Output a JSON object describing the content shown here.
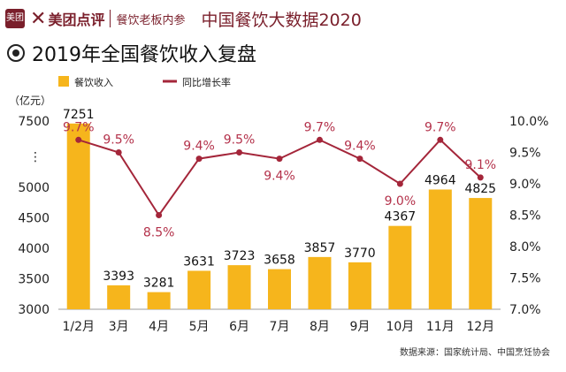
{
  "header": {
    "logo_box": "美团",
    "brand": "美团点评",
    "sub": "餐饮老板内参",
    "report": "中国餐饮大数据2020"
  },
  "title": "2019年全国餐饮收入复盘",
  "source": "数据来源：国家统计局、中国烹饪协会",
  "colors": {
    "bar": "#f6b51c",
    "line": "#a4263a",
    "growth_label": "#b4324b",
    "brand": "#7a1f2b"
  },
  "chart_data": {
    "type": "bar",
    "categories": [
      "1/2月",
      "3月",
      "4月",
      "5月",
      "6月",
      "7月",
      "8月",
      "9月",
      "10月",
      "11月",
      "12月"
    ],
    "series": [
      {
        "name": "餐饮收入",
        "type": "bar",
        "axis": "left",
        "values": [
          7251,
          3393,
          3281,
          3631,
          3723,
          3658,
          3857,
          3770,
          4367,
          4964,
          4825
        ]
      },
      {
        "name": "同比增长率",
        "type": "line",
        "axis": "right",
        "values": [
          9.7,
          9.5,
          8.5,
          9.4,
          9.5,
          9.4,
          9.7,
          9.4,
          9.0,
          9.7,
          9.1
        ],
        "labels": [
          "9.7%",
          "9.5%",
          "8.5%",
          "9.4%",
          "9.5%",
          "9.4%",
          "9.7%",
          "9.4%",
          "9.0%",
          "9.7%",
          "9.1%"
        ]
      }
    ],
    "ylabel": "（亿元）",
    "y_left_ticks": [
      "7500",
      "5000",
      "4500",
      "4000",
      "3500",
      "3000"
    ],
    "y_left_break": "⋮",
    "y_right_ticks": [
      "10.0%",
      "9.5%",
      "9.0%",
      "8.5%",
      "8.0%",
      "7.5%",
      "7.0%"
    ],
    "ylim_right": [
      7.0,
      10.0
    ],
    "legend_position": "top-left",
    "grid": false
  }
}
